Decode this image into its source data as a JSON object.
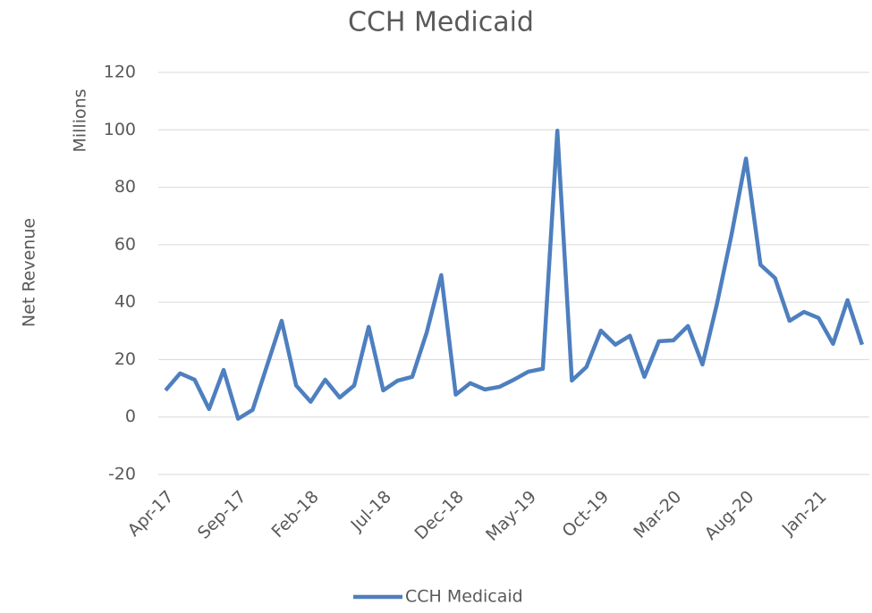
{
  "chart_data": {
    "type": "line",
    "title": "CCH Medicaid",
    "y_label": "Net Revenue",
    "y_unit_label": "Millions",
    "categories": [
      "Apr-17",
      null,
      null,
      null,
      null,
      "Sep-17",
      null,
      null,
      null,
      null,
      "Feb-18",
      null,
      null,
      null,
      null,
      "Jul-18",
      null,
      null,
      null,
      null,
      "Dec-18",
      null,
      null,
      null,
      null,
      "May-19",
      null,
      null,
      null,
      null,
      "Oct-19",
      null,
      null,
      null,
      null,
      "Mar-20",
      null,
      null,
      null,
      null,
      "Aug-20",
      null,
      null,
      null,
      null,
      "Jan-21",
      null,
      null,
      null
    ],
    "series": [
      {
        "name": "CCH Medicaid",
        "color": "#4e7fbf",
        "values": [
          9.3,
          15.2,
          13,
          2.8,
          16.4,
          -0.6,
          2.5,
          18,
          33.5,
          11,
          5.3,
          13,
          6.8,
          11,
          31.4,
          9.3,
          12.7,
          14,
          29.5,
          49.4,
          7.8,
          11.8,
          9.6,
          10.5,
          13,
          15.8,
          16.8,
          99.7,
          12.7,
          17.4,
          30.1,
          25.2,
          28.3,
          14,
          26.4,
          26.7,
          31.7,
          18.3,
          39.4,
          63.4,
          90,
          53,
          48.4,
          33.5,
          36.6,
          34.5,
          25.5,
          40.7,
          25.2
        ]
      }
    ],
    "ylim": [
      -20,
      120
    ],
    "yticks": [
      -20,
      0,
      20,
      40,
      60,
      80,
      100,
      120
    ],
    "grid": true,
    "legend": "bottom"
  }
}
